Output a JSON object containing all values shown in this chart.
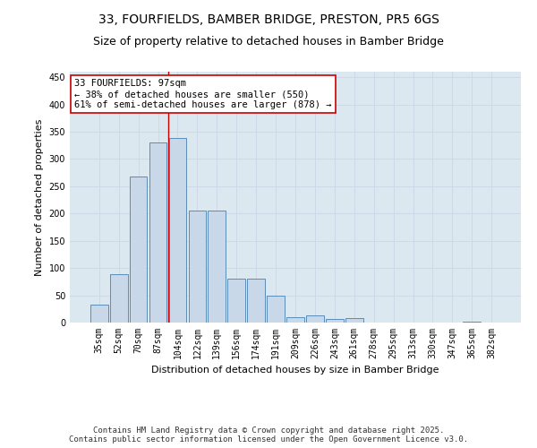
{
  "title_line1": "33, FOURFIELDS, BAMBER BRIDGE, PRESTON, PR5 6GS",
  "title_line2": "Size of property relative to detached houses in Bamber Bridge",
  "xlabel": "Distribution of detached houses by size in Bamber Bridge",
  "ylabel": "Number of detached properties",
  "categories": [
    "35sqm",
    "52sqm",
    "70sqm",
    "87sqm",
    "104sqm",
    "122sqm",
    "139sqm",
    "156sqm",
    "174sqm",
    "191sqm",
    "209sqm",
    "226sqm",
    "243sqm",
    "261sqm",
    "278sqm",
    "295sqm",
    "313sqm",
    "330sqm",
    "347sqm",
    "365sqm",
    "382sqm"
  ],
  "values": [
    33,
    88,
    267,
    330,
    338,
    205,
    205,
    80,
    80,
    50,
    10,
    13,
    6,
    8,
    0,
    0,
    0,
    0,
    0,
    2,
    0
  ],
  "bar_color": "#c8d8e8",
  "bar_edge_color": "#5b8db8",
  "grid_color": "#d0d8e8",
  "background_color": "#dce8f0",
  "annotation_text": "33 FOURFIELDS: 97sqm\n← 38% of detached houses are smaller (550)\n61% of semi-detached houses are larger (878) →",
  "annotation_box_color": "#ffffff",
  "annotation_box_edge_color": "#cc0000",
  "vline_x": 3.5,
  "vline_color": "#cc0000",
  "ylim": [
    0,
    460
  ],
  "yticks": [
    0,
    50,
    100,
    150,
    200,
    250,
    300,
    350,
    400,
    450
  ],
  "footer_text": "Contains HM Land Registry data © Crown copyright and database right 2025.\nContains public sector information licensed under the Open Government Licence v3.0.",
  "title_fontsize": 10,
  "subtitle_fontsize": 9,
  "axis_label_fontsize": 8,
  "tick_fontsize": 7,
  "annotation_fontsize": 7.5,
  "footer_fontsize": 6.5
}
